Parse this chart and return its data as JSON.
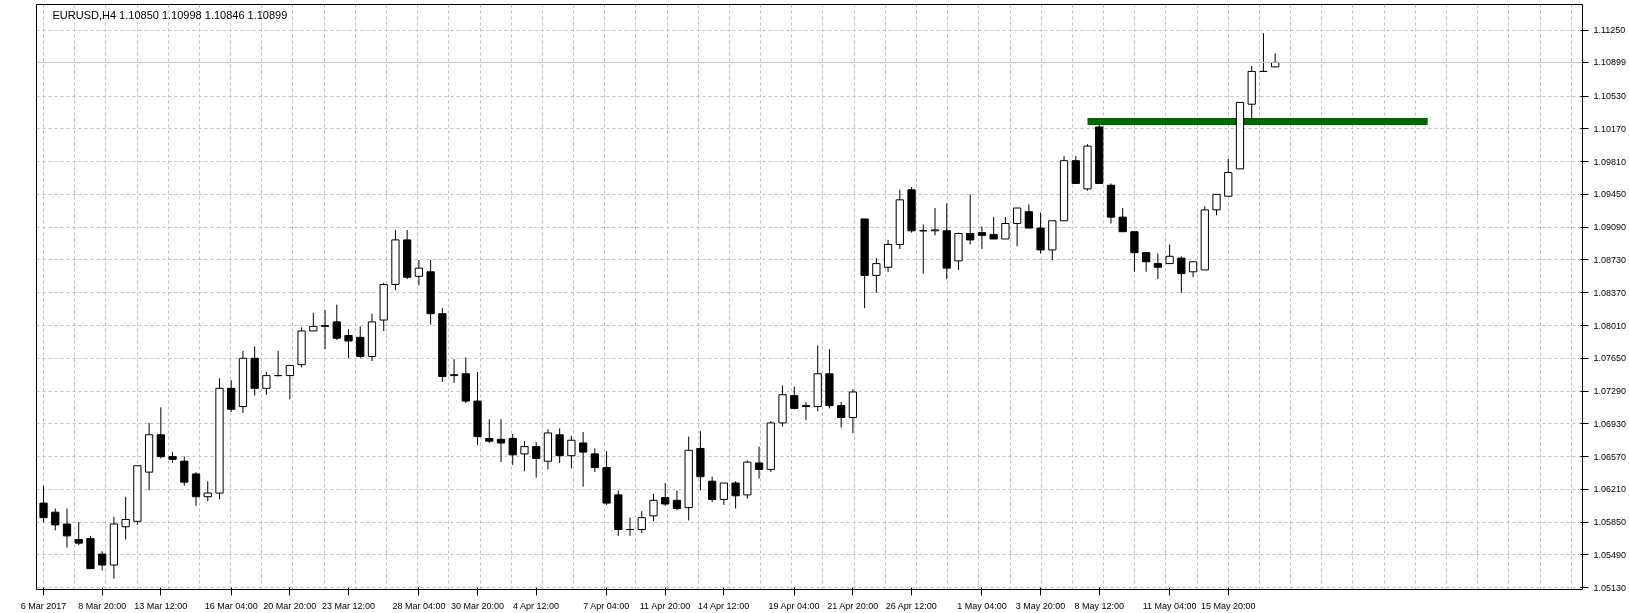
{
  "chart_data": {
    "type": "candlestick",
    "title": "EURUSD,H4  1.10850 1.10998 1.10846 1.10899",
    "ylim": [
      1.05111,
      1.11535
    ],
    "grid": true,
    "categories": [
      "6 Mar 2017",
      null,
      null,
      null,
      null,
      "8 Mar 20:00",
      null,
      null,
      null,
      null,
      "13 Mar 12:00",
      null,
      null,
      null,
      null,
      null,
      "16 Mar 04:00",
      null,
      null,
      null,
      null,
      "20 Mar 20:00",
      null,
      null,
      null,
      null,
      "23 Mar 12:00",
      null,
      null,
      null,
      null,
      null,
      "28 Mar 04:00",
      null,
      null,
      null,
      null,
      "30 Mar 20:00",
      null,
      null,
      null,
      null,
      "4 Apr 12:00",
      null,
      null,
      null,
      null,
      null,
      "7 Apr 04:00",
      null,
      null,
      null,
      null,
      "11 Apr 20:00",
      null,
      null,
      null,
      null,
      "14 Apr 12:00",
      null,
      null,
      null,
      null,
      null,
      "19 Apr 04:00",
      null,
      null,
      null,
      null,
      "21 Apr 20:00",
      null,
      null,
      null,
      null,
      "26 Apr 12:00",
      null,
      null,
      null,
      null,
      null,
      "1 May 04:00",
      null,
      null,
      null,
      null,
      "3 May 20:00",
      null,
      null,
      null,
      null,
      "8 May 12:00",
      null,
      null,
      null,
      null,
      null,
      "11 May 04:00",
      null,
      null,
      null,
      null,
      "15 May 20:00",
      null,
      null,
      null,
      null,
      null,
      null,
      null,
      null,
      null,
      null,
      null,
      null,
      null,
      null,
      null,
      null,
      null,
      null,
      null,
      null,
      null,
      null,
      null,
      null,
      null,
      null,
      null,
      null,
      null,
      null
    ],
    "yticks": [
      {
        "value": 1.1125,
        "label": "1.11250"
      },
      {
        "value": 1.1053,
        "label": "1.10530"
      },
      {
        "value": 1.1017,
        "label": "1.10170"
      },
      {
        "value": 1.0981,
        "label": "1.09810"
      },
      {
        "value": 1.0945,
        "label": "1.09450"
      },
      {
        "value": 1.0909,
        "label": "1.09090"
      },
      {
        "value": 1.0873,
        "label": "1.08730"
      },
      {
        "value": 1.0837,
        "label": "1.08370"
      },
      {
        "value": 1.0801,
        "label": "1.08010"
      },
      {
        "value": 1.0765,
        "label": "1.07650"
      },
      {
        "value": 1.0729,
        "label": "1.07290"
      },
      {
        "value": 1.0693,
        "label": "1.06930"
      },
      {
        "value": 1.0657,
        "label": "1.06570"
      },
      {
        "value": 1.0621,
        "label": "1.06210"
      },
      {
        "value": 1.0585,
        "label": "1.05850"
      },
      {
        "value": 1.0549,
        "label": "1.05490"
      },
      {
        "value": 1.0513,
        "label": "1.05130"
      }
    ],
    "ref_lines": [
      {
        "axis": "y",
        "value": 1.10899,
        "label": "1.10899",
        "color": "#c0c0c0"
      }
    ],
    "series": [
      {
        "color": "#000000",
        "ohlc": [
          [
            1.0606,
            1.0625,
            1.0585,
            1.059
          ],
          [
            1.0596,
            1.06,
            1.0576,
            1.0582
          ],
          [
            1.0583,
            1.06,
            1.0557,
            1.057
          ],
          [
            1.0566,
            1.0585,
            1.056,
            1.0562
          ],
          [
            1.0567,
            1.057,
            1.0534,
            1.0534
          ],
          [
            1.055,
            1.0553,
            1.0532,
            1.0538
          ],
          [
            1.0538,
            1.0591,
            1.0523,
            1.0583
          ],
          [
            1.058,
            1.0613,
            1.0566,
            1.0588
          ],
          [
            1.0586,
            1.0647,
            1.0582,
            1.0647
          ],
          [
            1.064,
            1.0694,
            1.062,
            1.0681
          ],
          [
            1.0681,
            1.0711,
            1.0655,
            1.0657
          ],
          [
            1.0657,
            1.0662,
            1.065,
            1.0654
          ],
          [
            1.0652,
            1.0657,
            1.0625,
            1.0629
          ],
          [
            1.0638,
            1.064,
            1.0603,
            1.0613
          ],
          [
            1.0613,
            1.063,
            1.0608,
            1.0617
          ],
          [
            1.0617,
            1.0743,
            1.061,
            1.0732
          ],
          [
            1.0732,
            1.0741,
            1.0706,
            1.0709
          ],
          [
            1.0712,
            1.0773,
            1.0705,
            1.0765
          ],
          [
            1.0765,
            1.0778,
            1.0724,
            1.0732
          ],
          [
            1.0732,
            1.075,
            1.0725,
            1.0746
          ],
          [
            1.0746,
            1.0773,
            1.0745,
            1.0746
          ],
          [
            1.0746,
            1.0758,
            1.072,
            1.0757
          ],
          [
            1.0758,
            1.0799,
            1.0755,
            1.0795
          ],
          [
            1.0795,
            1.0815,
            1.0795,
            1.08
          ],
          [
            1.08,
            1.0818,
            1.0775,
            1.0801
          ],
          [
            1.0805,
            1.0824,
            1.0785,
            1.0787
          ],
          [
            1.079,
            1.0797,
            1.0765,
            1.0784
          ],
          [
            1.0788,
            1.08,
            1.0765,
            1.0767
          ],
          [
            1.0767,
            1.0814,
            1.0762,
            1.0805
          ],
          [
            1.0807,
            1.0848,
            1.0795,
            1.0846
          ],
          [
            1.0846,
            1.0906,
            1.084,
            1.0895
          ],
          [
            1.0895,
            1.0906,
            1.0852,
            1.0854
          ],
          [
            1.0855,
            1.0873,
            1.0845,
            1.0864
          ],
          [
            1.086,
            1.0873,
            1.0802,
            1.0814
          ],
          [
            1.0814,
            1.082,
            1.0739,
            1.0745
          ],
          [
            1.0746,
            1.0764,
            1.0738,
            1.0747
          ],
          [
            1.0748,
            1.0766,
            1.0716,
            1.0718
          ],
          [
            1.0718,
            1.075,
            1.067,
            1.0679
          ],
          [
            1.0677,
            1.0698,
            1.0672,
            1.0674
          ],
          [
            1.0676,
            1.0698,
            1.0651,
            1.0672
          ],
          [
            1.0677,
            1.0682,
            1.0648,
            1.0659
          ],
          [
            1.066,
            1.0674,
            1.0641,
            1.0668
          ],
          [
            1.0668,
            1.0673,
            1.0634,
            1.0655
          ],
          [
            1.0652,
            1.0687,
            1.0643,
            1.0683
          ],
          [
            1.0681,
            1.0688,
            1.065,
            1.0658
          ],
          [
            1.0658,
            1.068,
            1.0644,
            1.0675
          ],
          [
            1.0672,
            1.0684,
            1.0624,
            1.0662
          ],
          [
            1.066,
            1.0666,
            1.064,
            1.0645
          ],
          [
            1.0645,
            1.0663,
            1.0604,
            1.0606
          ],
          [
            1.0615,
            1.062,
            1.057,
            1.0577
          ],
          [
            1.0577,
            1.059,
            1.057,
            1.0577
          ],
          [
            1.0577,
            1.0597,
            1.0573,
            1.059
          ],
          [
            1.0592,
            1.0616,
            1.0586,
            1.0609
          ],
          [
            1.0612,
            1.0628,
            1.0603,
            1.0605
          ],
          [
            1.0609,
            1.062,
            1.0598,
            1.06
          ],
          [
            1.0601,
            1.0679,
            1.0587,
            1.0664
          ],
          [
            1.0666,
            1.0685,
            1.062,
            1.0635
          ],
          [
            1.063,
            1.0635,
            1.0607,
            1.061
          ],
          [
            1.061,
            1.0628,
            1.0604,
            1.0628
          ],
          [
            1.0628,
            1.063,
            1.06,
            1.0614
          ],
          [
            1.0615,
            1.0653,
            1.0611,
            1.0651
          ],
          [
            1.065,
            1.0668,
            1.0633,
            1.0643
          ],
          [
            1.0643,
            1.0696,
            1.064,
            1.0694
          ],
          [
            1.0694,
            1.0735,
            1.069,
            1.0725
          ],
          [
            1.0724,
            1.0734,
            1.0709,
            1.071
          ],
          [
            1.0713,
            1.0717,
            1.0697,
            1.0712
          ],
          [
            1.0712,
            1.0779,
            1.0707,
            1.0748
          ],
          [
            1.0748,
            1.0775,
            1.071,
            1.0713
          ],
          [
            1.0713,
            1.0717,
            1.0689,
            1.07
          ],
          [
            1.07,
            1.0731,
            1.0683,
            1.0728
          ],
          [
            1.0918,
            1.0918,
            1.082,
            1.0856
          ],
          [
            1.0856,
            1.0875,
            1.0837,
            1.0869
          ],
          [
            1.0865,
            1.0895,
            1.086,
            1.089
          ],
          [
            1.089,
            1.095,
            1.0885,
            1.0939
          ],
          [
            1.095,
            1.0953,
            1.0903,
            1.0905
          ],
          [
            1.0905,
            1.0912,
            1.0858,
            1.0905
          ],
          [
            1.0905,
            1.093,
            1.09,
            1.0906
          ],
          [
            1.0905,
            1.0935,
            1.0852,
            1.0864
          ],
          [
            1.0872,
            1.0903,
            1.0862,
            1.0902
          ],
          [
            1.0902,
            1.0945,
            1.089,
            1.0895
          ],
          [
            1.0903,
            1.091,
            1.0885,
            1.09
          ],
          [
            1.0901,
            1.092,
            1.0896,
            1.0896
          ],
          [
            1.0896,
            1.092,
            1.0896,
            1.0913
          ],
          [
            1.0913,
            1.093,
            1.0888,
            1.093
          ],
          [
            1.0926,
            1.0934,
            1.0908,
            1.0908
          ],
          [
            1.0908,
            1.0925,
            1.088,
            1.0884
          ],
          [
            1.0884,
            1.0916,
            1.0873,
            1.0916
          ],
          [
            1.0916,
            1.0987,
            1.0916,
            1.0982
          ],
          [
            1.0982,
            1.0987,
            1.0957,
            1.0957
          ],
          [
            1.0951,
            1.1,
            1.0949,
            1.0998
          ],
          [
            1.1019,
            1.1022,
            1.0957,
            1.0957
          ],
          [
            1.0955,
            1.0957,
            1.0913,
            1.092
          ],
          [
            1.092,
            1.093,
            1.0904,
            1.0904
          ],
          [
            1.0904,
            1.0904,
            1.086,
            1.0881
          ],
          [
            1.0881,
            1.0881,
            1.086,
            1.0871
          ],
          [
            1.0869,
            1.088,
            1.0852,
            1.0865
          ],
          [
            1.0869,
            1.089,
            1.0869,
            1.0877
          ],
          [
            1.0875,
            1.0877,
            1.0837,
            1.0858
          ],
          [
            1.086,
            1.0871,
            1.0854,
            1.0871
          ],
          [
            1.0862,
            1.0932,
            1.0862,
            1.0928
          ],
          [
            1.0928,
            1.0945,
            1.0922,
            1.0945
          ],
          [
            1.0943,
            1.0984,
            1.0943,
            1.0969
          ],
          [
            1.0973,
            1.1046,
            1.0973,
            1.1046
          ],
          [
            1.1044,
            1.1086,
            1.1027,
            1.108
          ],
          [
            1.108,
            1.1122,
            1.108,
            1.108
          ],
          [
            1.1085,
            1.10998,
            1.10846,
            1.10899
          ],
          null,
          null,
          null,
          null,
          null,
          null,
          null,
          null,
          null,
          null,
          null,
          null,
          null,
          null,
          null,
          null,
          null,
          null,
          null,
          null,
          null,
          null,
          null,
          null,
          null,
          null
        ]
      },
      {
        "type": "line",
        "color": "#006400",
        "values": [
          null,
          null,
          null,
          null,
          null,
          null,
          null,
          null,
          null,
          null,
          null,
          null,
          null,
          null,
          null,
          null,
          null,
          null,
          null,
          null,
          null,
          null,
          null,
          null,
          null,
          null,
          null,
          null,
          null,
          null,
          null,
          null,
          null,
          null,
          null,
          null,
          null,
          null,
          null,
          null,
          null,
          null,
          null,
          null,
          null,
          null,
          null,
          null,
          null,
          null,
          null,
          null,
          null,
          null,
          null,
          null,
          null,
          null,
          null,
          null,
          null,
          null,
          null,
          null,
          null,
          null,
          null,
          null,
          null,
          null,
          null,
          null,
          null,
          null,
          null,
          null,
          null,
          null,
          null,
          null,
          null,
          null,
          null,
          null,
          null,
          null,
          null,
          null,
          null,
          1.1025,
          1.1025,
          1.1025,
          1.1025,
          1.1025,
          1.1025,
          1.1025,
          1.1025,
          1.1025,
          1.1025,
          1.1025,
          1.1025,
          1.1025,
          1.1025,
          1.1025,
          1.1025,
          1.1025,
          1.1025,
          1.1025,
          1.1025,
          1.1025,
          1.1025,
          1.1025,
          1.1025,
          1.1025,
          1.1025,
          1.1025,
          1.1025,
          1.1025,
          1.1025,
          null,
          null,
          null,
          null,
          null,
          null,
          null,
          null,
          null,
          null,
          null,
          null,
          null
        ]
      }
    ]
  }
}
